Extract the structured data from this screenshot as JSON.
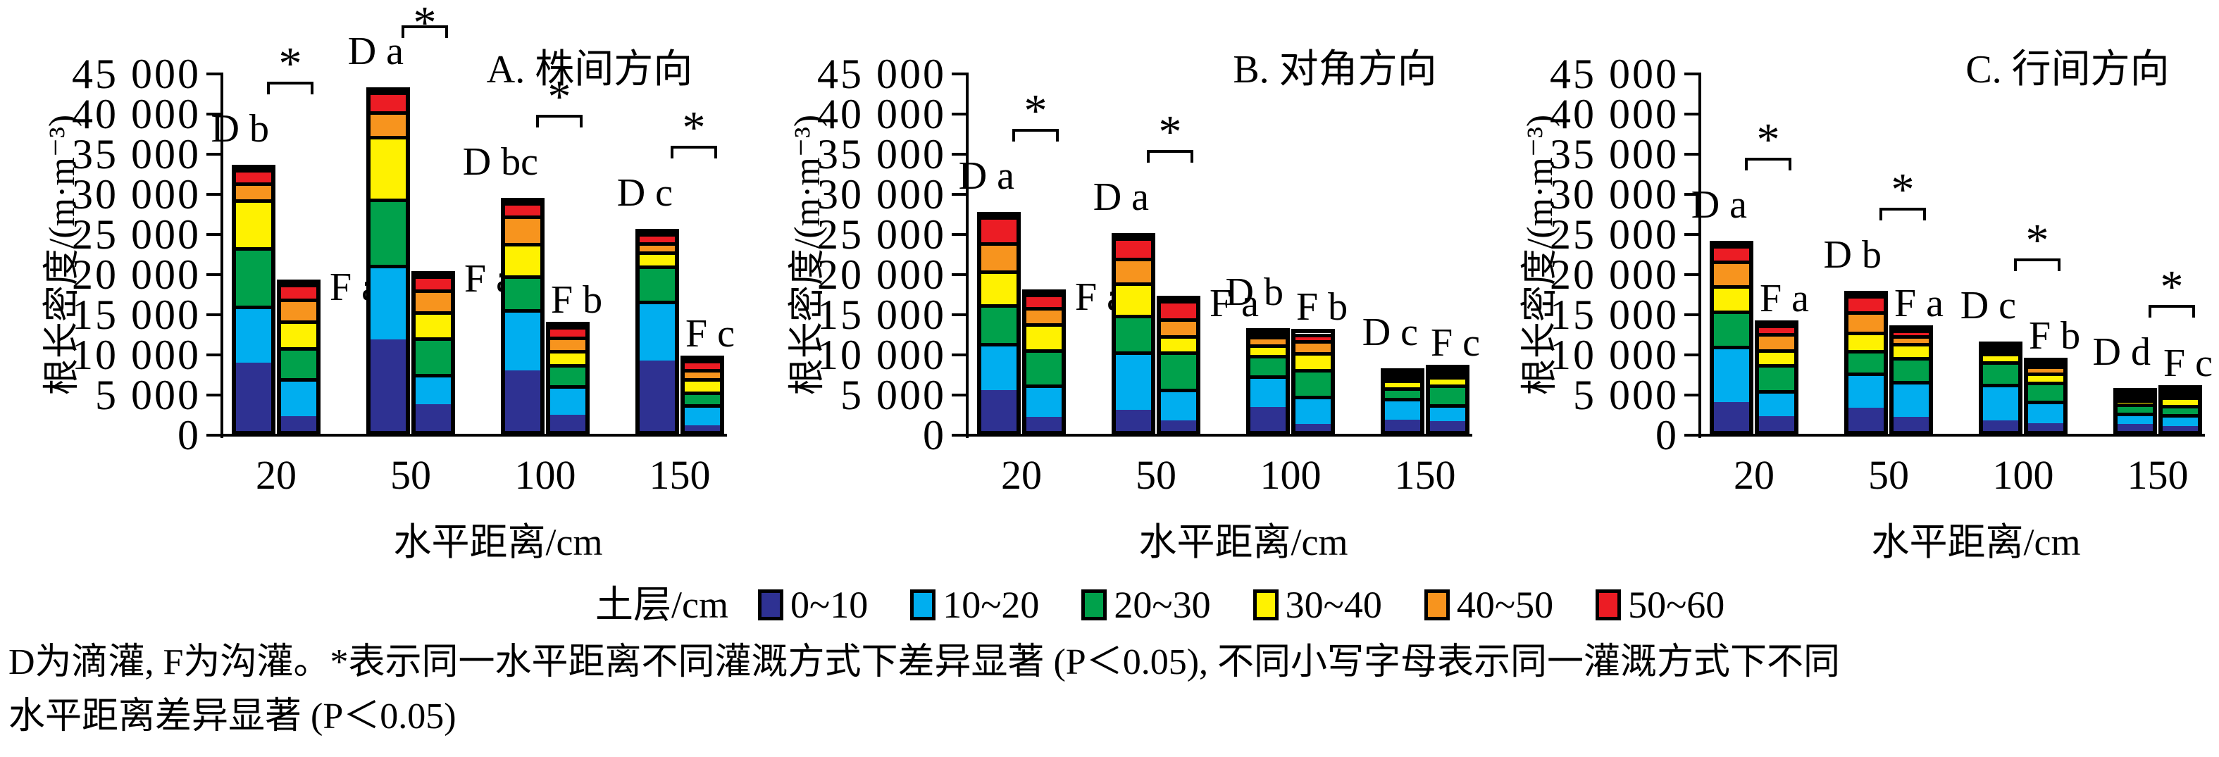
{
  "axes": {
    "y_label": "根长密度/(m·m⁻³)",
    "x_label": "水平距离/cm",
    "y_max": 45000,
    "y_tick_step": 5000,
    "y_tick_labels": [
      "45 000",
      "40 000",
      "35 000",
      "30 000",
      "25 000",
      "20 000",
      "15 000",
      "10 000",
      "5 000",
      "0"
    ],
    "x_categories": [
      "20",
      "50",
      "100",
      "150"
    ]
  },
  "layer_colors": {
    "0~10": "#2E3192",
    "10~20": "#00AEEF",
    "20~30": "#00A14B",
    "30~40": "#FFF200",
    "40~50": "#F7941E",
    "50~60": "#EC1C24"
  },
  "legend": {
    "title": "土层/cm",
    "items": [
      {
        "label": "0~10",
        "color": "#2E3192"
      },
      {
        "label": "10~20",
        "color": "#00AEEF"
      },
      {
        "label": "20~30",
        "color": "#00A14B"
      },
      {
        "label": "30~40",
        "color": "#FFF200"
      },
      {
        "label": "40~50",
        "color": "#F7941E"
      },
      {
        "label": "50~60",
        "color": "#EC1C24"
      }
    ]
  },
  "footnote": {
    "line1": "D为滴灌, F为沟灌。*表示同一水平距离不同灌溉方式下差异显著 (P＜0.05), 不同小写字母表示同一灌溉方式下不同",
    "line2": "水平距离差异显著 (P＜0.05)"
  },
  "chart_data": [
    {
      "type": "bar",
      "stacked": true,
      "title": "A. 株间方向",
      "ylabel": "根长密度/(m·m⁻³)",
      "xlabel": "水平距离/cm",
      "ylim": [
        0,
        45000
      ],
      "layers_bottom_to_top": [
        "0~10",
        "10~20",
        "20~30",
        "30~40",
        "40~50",
        "50~60"
      ],
      "groups": [
        {
          "category": "20",
          "d_label": "D b",
          "f_label": "F a",
          "star": true,
          "D": {
            "total": 32600,
            "segments": [
              8500,
              7100,
              7300,
              6000,
              2100,
              1600
            ]
          },
          "F": {
            "total": 18300,
            "segments": [
              1850,
              4750,
              3850,
              3350,
              2700,
              1800
            ]
          }
        },
        {
          "category": "50",
          "d_label": "D a",
          "f_label": "F a",
          "star": true,
          "D": {
            "total": 42300,
            "segments": [
              11400,
              9300,
              8250,
              7800,
              3050,
              2500
            ]
          },
          "F": {
            "total": 19400,
            "segments": [
              3350,
              3750,
              4550,
              3250,
              2750,
              1750
            ]
          }
        },
        {
          "category": "100",
          "d_label": "D bc",
          "f_label": "F b",
          "star": true,
          "D": {
            "total": 28500,
            "segments": [
              7500,
              7650,
              4200,
              4100,
              3350,
              1700
            ]
          },
          "F": {
            "total": 13100,
            "segments": [
              2000,
              3700,
              2600,
              1800,
              1700,
              1300
            ]
          }
        },
        {
          "category": "150",
          "d_label": "D c",
          "f_label": "F c",
          "star": true,
          "D": {
            "total": 24650,
            "segments": [
              8800,
              7400,
              4400,
              1800,
              1150,
              1100
            ]
          },
          "F": {
            "total": 8900,
            "segments": [
              700,
              2650,
              1600,
              1650,
              1150,
              1150
            ]
          }
        }
      ]
    },
    {
      "type": "bar",
      "stacked": true,
      "title": "B. 对角方向",
      "ylabel": "根长密度/(m·m⁻³)",
      "xlabel": "水平距离/cm",
      "ylim": [
        0,
        45000
      ],
      "layers_bottom_to_top": [
        "0~10",
        "10~20",
        "20~30",
        "30~40",
        "40~50",
        "50~60"
      ],
      "groups": [
        {
          "category": "20",
          "d_label": "D a",
          "f_label": "F a",
          "star": true,
          "D": {
            "total": 26750,
            "segments": [
              5100,
              5850,
              4850,
              4200,
              3500,
              3250
            ]
          },
          "F": {
            "total": 17100,
            "segments": [
              1750,
              4050,
              4350,
              3250,
              2050,
              1650
            ]
          }
        },
        {
          "category": "50",
          "d_label": "D a",
          "f_label": "F a",
          "star": true,
          "D": {
            "total": 24150,
            "segments": [
              2650,
              7300,
              4550,
              4050,
              3000,
              2600
            ]
          },
          "F": {
            "total": 16300,
            "segments": [
              1300,
              3950,
              4650,
              2000,
              2100,
              2300
            ]
          }
        },
        {
          "category": "100",
          "d_label": "D b",
          "f_label": "F b",
          "star": false,
          "D": {
            "total": 12300,
            "segments": [
              3000,
              4050,
              2600,
              1300,
              1100,
              250
            ]
          },
          "F": {
            "total": 12150,
            "segments": [
              900,
              3500,
              3350,
              2100,
              1500,
              800
            ]
          }
        },
        {
          "category": "150",
          "d_label": "D c",
          "f_label": "F c",
          "star": false,
          "D": {
            "total": 7250,
            "segments": [
              1500,
              2800,
              1300,
              1000,
              350,
              300
            ]
          },
          "F": {
            "total": 7750,
            "segments": [
              1300,
              2300,
              2600,
              1100,
              250,
              200
            ]
          }
        }
      ]
    },
    {
      "type": "bar",
      "stacked": true,
      "title": "C. 行间方向",
      "ylabel": "根长密度/(m·m⁻³)",
      "xlabel": "水平距离/cm",
      "ylim": [
        0,
        45000
      ],
      "layers_bottom_to_top": [
        "0~10",
        "10~20",
        "20~30",
        "30~40",
        "40~50",
        "50~60"
      ],
      "groups": [
        {
          "category": "20",
          "d_label": "D a",
          "f_label": "F a",
          "star": true,
          "D": {
            "total": 23150,
            "segments": [
              3600,
              7000,
              4400,
              3150,
              3050,
              1950
            ]
          },
          "F": {
            "total": 13250,
            "segments": [
              1850,
              3250,
              3250,
              1850,
              2000,
              1050
            ]
          }
        },
        {
          "category": "50",
          "d_label": "D b",
          "f_label": "F a",
          "star": true,
          "D": {
            "total": 16950,
            "segments": [
              2900,
              4400,
              2800,
              2300,
              2500,
              2050
            ]
          },
          "F": {
            "total": 12600,
            "segments": [
              1750,
              4500,
              3000,
              1750,
              900,
              700
            ]
          }
        },
        {
          "category": "100",
          "d_label": "D c",
          "f_label": "F b",
          "star": true,
          "D": {
            "total": 10600,
            "segments": [
              1300,
              4650,
              2900,
              1050,
              350,
              350
            ]
          },
          "F": {
            "total": 8600,
            "segments": [
              950,
              2800,
              2400,
              1150,
              900,
              400
            ]
          }
        },
        {
          "category": "150",
          "d_label": "D d",
          "f_label": "F c",
          "star": true,
          "D": {
            "total": 4850,
            "segments": [
              1050,
              1500,
              1250,
              600,
              250,
              200
            ]
          },
          "F": {
            "total": 5150,
            "segments": [
              700,
              1600,
              1300,
              1100,
              250,
              200
            ]
          }
        }
      ]
    }
  ]
}
